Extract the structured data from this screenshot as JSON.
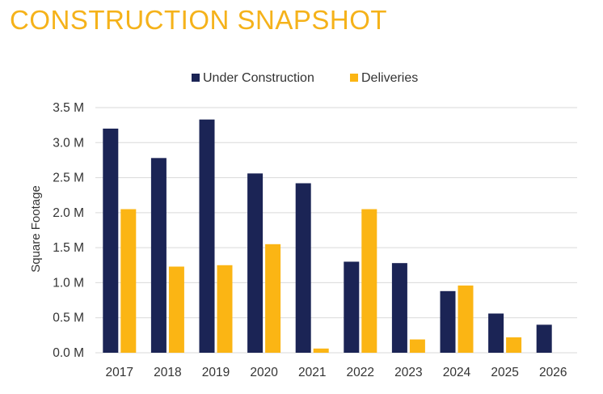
{
  "page": {
    "title": "CONSTRUCTION SNAPSHOT"
  },
  "chart_data": {
    "type": "bar",
    "title": "CONSTRUCTION SNAPSHOT",
    "xlabel": "",
    "ylabel": "Square Footage",
    "ylim": [
      0,
      3.5
    ],
    "yticks": [
      "0.0 M",
      "0.5 M",
      "1.0 M",
      "1.5 M",
      "2.0 M",
      "2.5 M",
      "3.0 M",
      "3.5 M"
    ],
    "grid": true,
    "legend_position": "top",
    "categories": [
      "2017",
      "2018",
      "2019",
      "2020",
      "2021",
      "2022",
      "2023",
      "2024",
      "2025",
      "2026"
    ],
    "series": [
      {
        "name": "Under Construction",
        "color": "#1b2455",
        "values": [
          3.2,
          2.78,
          3.33,
          2.56,
          2.42,
          1.3,
          1.28,
          0.88,
          0.56,
          0.4
        ]
      },
      {
        "name": "Deliveries",
        "color": "#fbb514",
        "values": [
          2.05,
          1.23,
          1.25,
          1.55,
          0.06,
          2.05,
          0.19,
          0.96,
          0.22,
          0
        ]
      }
    ]
  }
}
